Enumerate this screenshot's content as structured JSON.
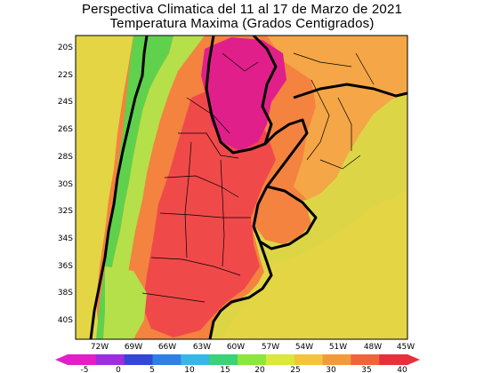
{
  "title_line1": "Perspectiva Climatica del 11 al 17 de Marzo de 2021",
  "title_line2": "Temperatura Maxima (Grados Centigrados)",
  "lat_labels": [
    "20S",
    "22S",
    "24S",
    "26S",
    "28S",
    "30S",
    "32S",
    "34S",
    "36S",
    "38S",
    "40S"
  ],
  "lon_labels": [
    "72W",
    "69W",
    "66W",
    "63W",
    "60W",
    "57W",
    "54W",
    "51W",
    "48W",
    "45W"
  ],
  "colorbar": {
    "ticks": [
      "-5",
      "0",
      "5",
      "10",
      "15",
      "20",
      "25",
      "30",
      "35",
      "40"
    ],
    "colors": [
      "#e31dc8",
      "#9c2de0",
      "#3346d8",
      "#2f7fe8",
      "#35b8e8",
      "#39d37a",
      "#8fe63b",
      "#d9e83a",
      "#f3c53a",
      "#f59a39",
      "#f1633b",
      "#e8303c"
    ]
  },
  "colors": {
    "hot_pink": "#e01f8a",
    "red": "#f0494a",
    "orange": "#f3833f",
    "light_orange": "#f5a646",
    "yellow": "#e3d544",
    "green_yellow": "#b5e04a",
    "green": "#5fd14c",
    "sea": "#dcd647"
  }
}
